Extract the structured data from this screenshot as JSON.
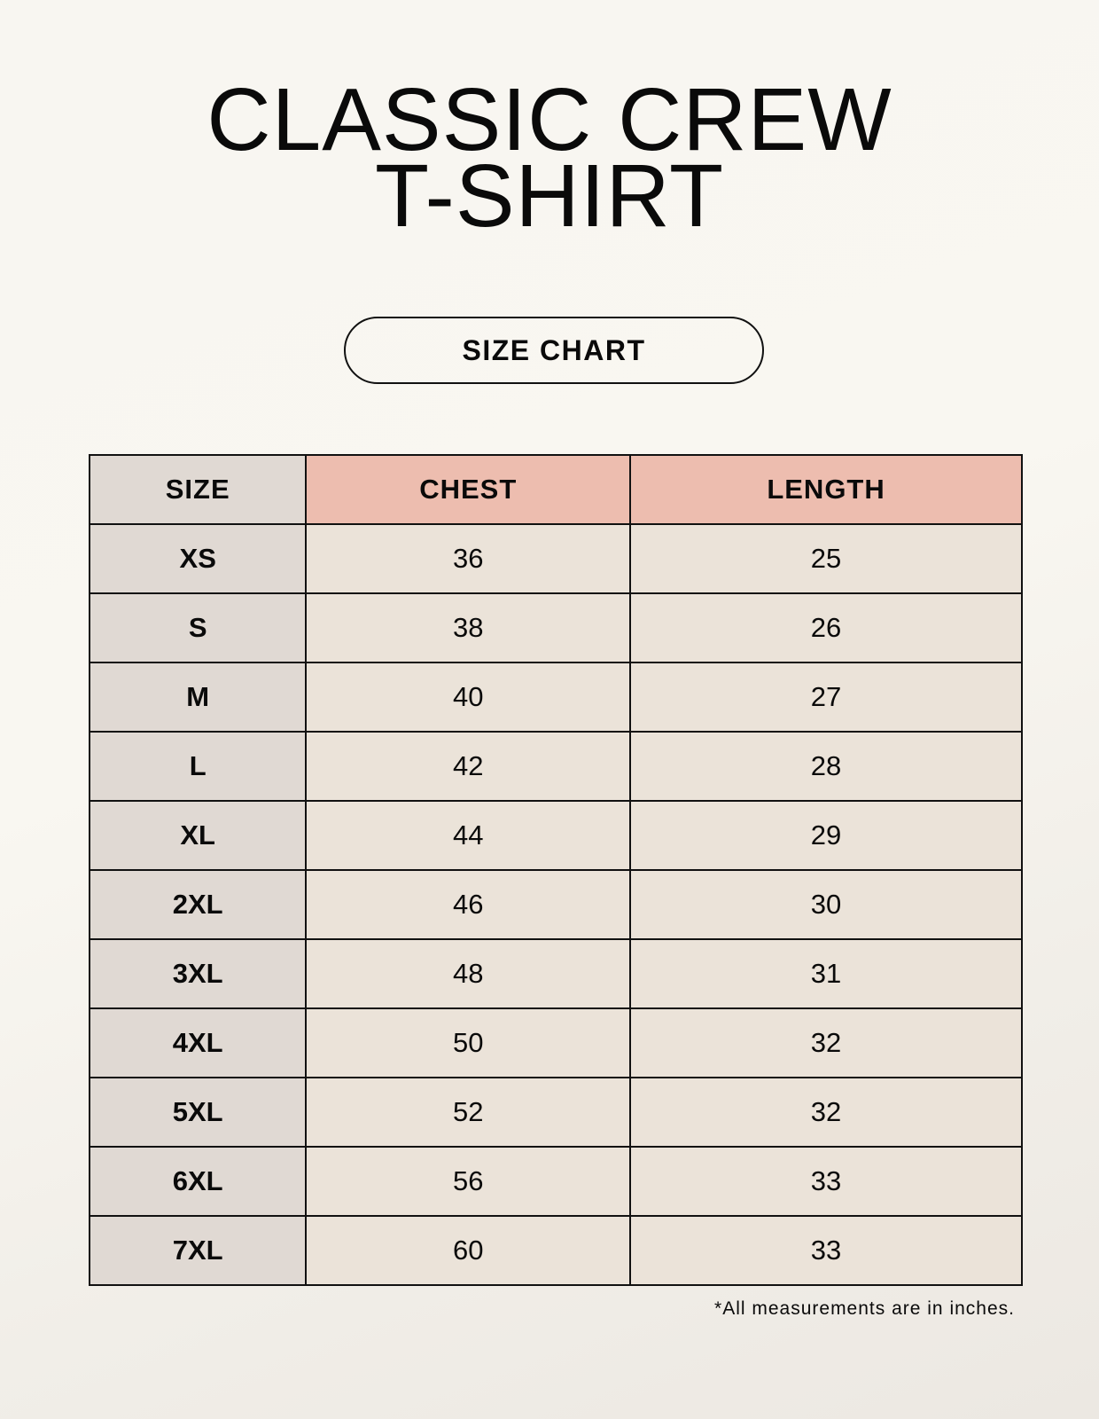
{
  "title": {
    "line1": "CLASSIC CREW",
    "line2": "T-SHIRT"
  },
  "badge": "SIZE CHART",
  "table": {
    "headers": [
      "SIZE",
      "CHEST",
      "LENGTH"
    ],
    "rows": [
      [
        "XS",
        "36",
        "25"
      ],
      [
        "S",
        "38",
        "26"
      ],
      [
        "M",
        "40",
        "27"
      ],
      [
        "L",
        "42",
        "28"
      ],
      [
        "XL",
        "44",
        "29"
      ],
      [
        "2XL",
        "46",
        "30"
      ],
      [
        "3XL",
        "48",
        "31"
      ],
      [
        "4XL",
        "50",
        "32"
      ],
      [
        "5XL",
        "52",
        "32"
      ],
      [
        "6XL",
        "56",
        "33"
      ],
      [
        "7XL",
        "60",
        "33"
      ]
    ]
  },
  "footnote": "*All measurements are in inches.",
  "colors": {
    "size_column": "#e0d9d3",
    "header_accent": "#edbdaf",
    "value_cells": "#ebe3d9"
  }
}
